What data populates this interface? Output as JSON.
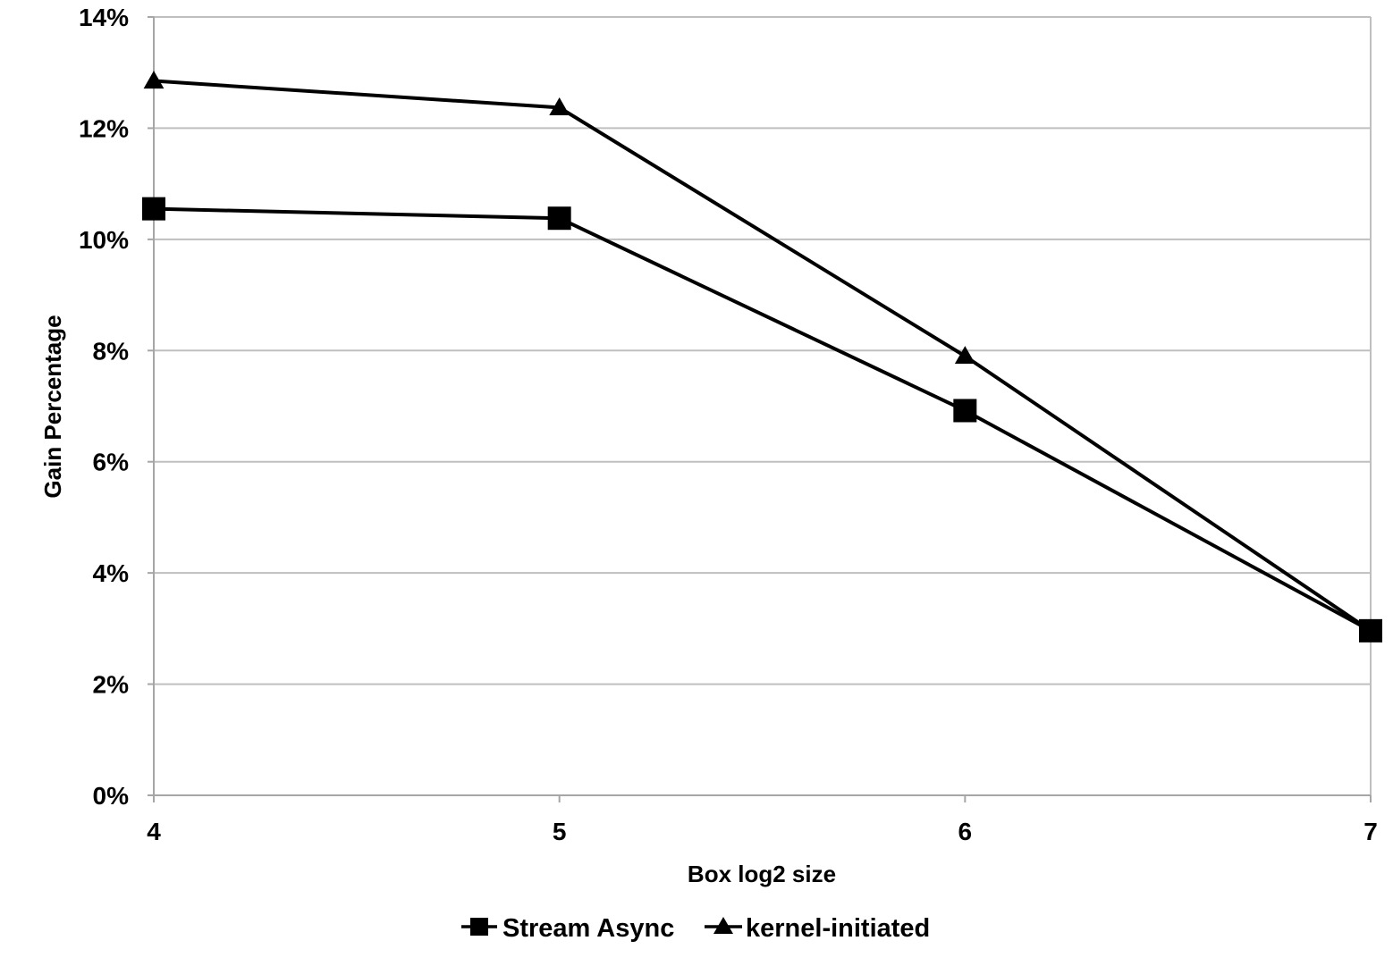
{
  "chart_data": {
    "type": "line",
    "title": "",
    "xlabel": "Box log2 size",
    "ylabel": "Gain Percentage",
    "x": [
      4,
      5,
      6,
      7
    ],
    "xlim": [
      4,
      7
    ],
    "ylim": [
      0,
      14
    ],
    "x_ticks": [
      "4",
      "5",
      "6",
      "7"
    ],
    "y_ticks": [
      "0%",
      "2%",
      "4%",
      "6%",
      "8%",
      "10%",
      "12%",
      "14%"
    ],
    "y_tick_values": [
      0,
      2,
      4,
      6,
      8,
      10,
      12,
      14
    ],
    "grid": "horizontal",
    "legend_position": "bottom",
    "series": [
      {
        "name": "Stream Async",
        "marker": "square",
        "color": "#000000",
        "values": [
          10.55,
          10.38,
          6.92,
          2.96
        ]
      },
      {
        "name": "kernel-initiated",
        "marker": "triangle",
        "color": "#000000",
        "values": [
          12.85,
          12.37,
          7.9,
          2.96
        ]
      }
    ],
    "colors": {
      "line": "#000000",
      "grid": "#bfbfbf",
      "axis": "#a6a6a6"
    }
  }
}
